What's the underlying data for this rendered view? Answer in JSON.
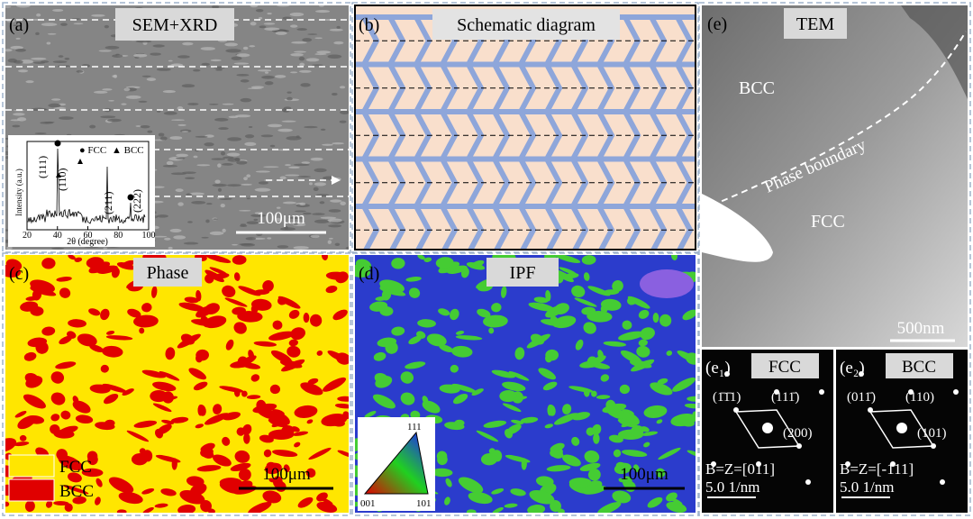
{
  "panels": {
    "a": {
      "label": "(a)",
      "title": "SEM+XRD",
      "scale": "100μm",
      "xrd": {
        "legend": [
          "● FCC",
          "▲ BCC"
        ],
        "peaks": [
          "(111)",
          "(110)",
          "(211)",
          "(222)"
        ],
        "ylabel": "Intensity (a.u.)",
        "xlabel": "2θ (degree)",
        "xticks": [
          "20",
          "40",
          "60",
          "80",
          "100"
        ]
      }
    },
    "b": {
      "label": "(b)",
      "title": "Schematic diagram"
    },
    "c": {
      "label": "(c)",
      "title": "Phase",
      "scale": "100μm",
      "legend": [
        "FCC",
        "BCC"
      ]
    },
    "d": {
      "label": "(d)",
      "title": "IPF",
      "scale": "100μm",
      "triangle": [
        "001",
        "101",
        "111"
      ]
    },
    "e": {
      "label": "(e)",
      "title": "TEM",
      "regions": [
        "BCC",
        "FCC"
      ],
      "boundary": "Phase boundary",
      "scale": "500nm"
    },
    "e1": {
      "label": "(e₁)",
      "title": "FCC",
      "spots": [
        "(1̄1̄1)",
        "(111̄)",
        "(200)"
      ],
      "zone": "B=Z=[011]",
      "scale": "5.0 1/nm"
    },
    "e2": {
      "label": "(e₂)",
      "title": "BCC",
      "spots": [
        "(011̄)",
        "(110)",
        "(101)"
      ],
      "zone": "B=Z=[-111]",
      "scale": "5.0 1/nm"
    }
  }
}
